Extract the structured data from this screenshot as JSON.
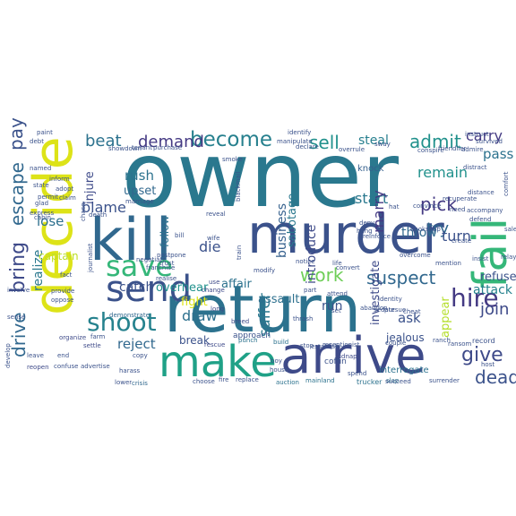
{
  "word_cloud": {
    "words": [
      {
        "text": "owner",
        "color": "#2a788e"
      },
      {
        "text": "decide",
        "color": "#dde318"
      },
      {
        "text": "kill",
        "color": "#31688e"
      },
      {
        "text": "murder",
        "color": "#3b528b"
      },
      {
        "text": "return",
        "color": "#2c728e"
      },
      {
        "text": "fail",
        "color": "#35b779"
      },
      {
        "text": "arrive",
        "color": "#3e4a89"
      },
      {
        "text": "make",
        "color": "#1fa187"
      },
      {
        "text": "send",
        "color": "#3b528b"
      },
      {
        "text": "save",
        "color": "#35b779"
      },
      {
        "text": "shoot",
        "color": "#26828e"
      },
      {
        "text": "work",
        "color": "#6ece58"
      },
      {
        "text": "become",
        "color": "#27808e"
      },
      {
        "text": "escape",
        "color": "#31688e"
      },
      {
        "text": "bring",
        "color": "#3e4a89"
      },
      {
        "text": "drive",
        "color": "#31688e"
      },
      {
        "text": "pay",
        "color": "#3b528b"
      },
      {
        "text": "beat",
        "color": "#2c728e"
      },
      {
        "text": "demand",
        "color": "#443983"
      },
      {
        "text": "sell",
        "color": "#21918c"
      },
      {
        "text": "steal",
        "color": "#277f8e"
      },
      {
        "text": "admit",
        "color": "#21918c"
      },
      {
        "text": "carry",
        "color": "#443a83"
      },
      {
        "text": "pass",
        "color": "#2c728e"
      },
      {
        "text": "blame",
        "color": "#3b528b"
      },
      {
        "text": "lose",
        "color": "#2d708e"
      },
      {
        "text": "realize",
        "color": "#2a788e"
      },
      {
        "text": "captain",
        "color": "#bddf26"
      },
      {
        "text": "injure",
        "color": "#3e4a89"
      },
      {
        "text": "rush",
        "color": "#2c728e"
      },
      {
        "text": "upset",
        "color": "#31688e"
      },
      {
        "text": "die",
        "color": "#3b528b"
      },
      {
        "text": "draw",
        "color": "#2d708e"
      },
      {
        "text": "reject",
        "color": "#31688e"
      },
      {
        "text": "catch",
        "color": "#3b528b"
      },
      {
        "text": "overhear",
        "color": "#21918c"
      },
      {
        "text": "affair",
        "color": "#2c728e"
      },
      {
        "text": "break",
        "color": "#3b528b"
      },
      {
        "text": "fight",
        "color": "#dde318"
      },
      {
        "text": "suffer",
        "color": "#2a788e"
      },
      {
        "text": "business",
        "color": "#35608d"
      },
      {
        "text": "sabotage",
        "color": "#2a788e"
      },
      {
        "text": "introduce",
        "color": "#3e4a89"
      },
      {
        "text": "start",
        "color": "#2a788e"
      },
      {
        "text": "marry",
        "color": "#443983"
      },
      {
        "text": "remain",
        "color": "#21918c"
      },
      {
        "text": "pick",
        "color": "#443a83"
      },
      {
        "text": "try",
        "color": "#31688e"
      },
      {
        "text": "turn",
        "color": "#3b528b"
      },
      {
        "text": "throw",
        "color": "#31688e"
      },
      {
        "text": "suspect",
        "color": "#31688e"
      },
      {
        "text": "hire",
        "color": "#443a83"
      },
      {
        "text": "join",
        "color": "#3e4a89"
      },
      {
        "text": "give",
        "color": "#3e4a89"
      },
      {
        "text": "dead",
        "color": "#3b528b"
      },
      {
        "text": "refuse",
        "color": "#3b528b"
      },
      {
        "text": "attack",
        "color": "#26828e"
      },
      {
        "text": "investigate",
        "color": "#3e4a89"
      },
      {
        "text": "ask",
        "color": "#3b528b"
      },
      {
        "text": "jealous",
        "color": "#3b528b"
      },
      {
        "text": "appear",
        "color": "#b5de2b"
      },
      {
        "text": "run",
        "color": "#3b528b"
      },
      {
        "text": "assault",
        "color": "#2d708e"
      },
      {
        "text": "follow",
        "color": "#2c728e"
      },
      {
        "text": "knock",
        "color": "#35608d"
      },
      {
        "text": "approach",
        "color": "#3b528b"
      },
      {
        "text": "interrogate",
        "color": "#2c728e"
      },
      {
        "text": "coffin",
        "color": "#3b528b"
      },
      {
        "text": "record",
        "color": "#3b528b"
      },
      {
        "text": "ransom",
        "color": "#3b528b"
      },
      {
        "text": "kidnap",
        "color": "#3e4a89"
      },
      {
        "text": "trucker",
        "color": "#2c728e"
      },
      {
        "text": "slap",
        "color": "#2c728e"
      },
      {
        "text": "auction",
        "color": "#2c728e"
      },
      {
        "text": "mainland",
        "color": "#2c728e"
      },
      {
        "text": "build",
        "color": "#2c728e"
      },
      {
        "text": "establish",
        "color": "#3b528b"
      },
      {
        "text": "punch",
        "color": "#2c728e"
      },
      {
        "text": "rescue",
        "color": "#3e4a89"
      },
      {
        "text": "breed",
        "color": "#3e4a89"
      },
      {
        "text": "long",
        "color": "#3e4a89"
      },
      {
        "text": "change",
        "color": "#3e4a89"
      },
      {
        "text": "use",
        "color": "#3e4a89"
      },
      {
        "text": "fire",
        "color": "#3b528b"
      },
      {
        "text": "choose",
        "color": "#3b528b"
      },
      {
        "text": "crisis",
        "color": "#31688e"
      },
      {
        "text": "lower",
        "color": "#3b528b"
      },
      {
        "text": "copy",
        "color": "#3b528b"
      },
      {
        "text": "settle",
        "color": "#3e4a89"
      },
      {
        "text": "organize",
        "color": "#3e4a89"
      },
      {
        "text": "demonstrate",
        "color": "#31688e"
      },
      {
        "text": "confuse",
        "color": "#3b528b"
      },
      {
        "text": "advertise",
        "color": "#3b528b"
      },
      {
        "text": "end",
        "color": "#3b528b"
      },
      {
        "text": "sense",
        "color": "#3b528b"
      },
      {
        "text": "leave",
        "color": "#3b528b"
      },
      {
        "text": "reopen",
        "color": "#3e4a89"
      },
      {
        "text": "develop",
        "color": "#3b528b"
      },
      {
        "text": "involve",
        "color": "#3b528b"
      },
      {
        "text": "provide",
        "color": "#3b528b"
      },
      {
        "text": "oppose",
        "color": "#3b528b"
      },
      {
        "text": "fact",
        "color": "#3b528b"
      },
      {
        "text": "adopt",
        "color": "#3b528b"
      },
      {
        "text": "claim",
        "color": "#3b528b"
      },
      {
        "text": "permit",
        "color": "#3b528b"
      },
      {
        "text": "inform",
        "color": "#3b528b"
      },
      {
        "text": "named",
        "color": "#3b528b"
      },
      {
        "text": "state",
        "color": "#3b528b"
      },
      {
        "text": "glad",
        "color": "#3b528b"
      },
      {
        "text": "cabin",
        "color": "#3b528b"
      },
      {
        "text": "express",
        "color": "#3b528b"
      },
      {
        "text": "paint",
        "color": "#3b528b"
      },
      {
        "text": "debt",
        "color": "#3b528b"
      },
      {
        "text": "identify",
        "color": "#3b528b"
      },
      {
        "text": "manipulate",
        "color": "#3b528b"
      },
      {
        "text": "showdown",
        "color": "#3b528b"
      },
      {
        "text": "tenant",
        "color": "#3b528b"
      },
      {
        "text": "purchase",
        "color": "#3b528b"
      },
      {
        "text": "declare",
        "color": "#3b528b"
      },
      {
        "text": "overrule",
        "color": "#3b528b"
      },
      {
        "text": "sway",
        "color": "#3b528b"
      },
      {
        "text": "friendlier",
        "color": "#3b528b"
      },
      {
        "text": "conspire",
        "color": "#3b528b"
      },
      {
        "text": "admire",
        "color": "#3b528b"
      },
      {
        "text": "survived",
        "color": "#3b528b"
      },
      {
        "text": "distract",
        "color": "#3b528b"
      },
      {
        "text": "distance",
        "color": "#3b528b"
      },
      {
        "text": "accompany",
        "color": "#3b528b"
      },
      {
        "text": "comfort",
        "color": "#3b528b"
      },
      {
        "text": "create",
        "color": "#3b528b"
      },
      {
        "text": "need",
        "color": "#3b528b"
      },
      {
        "text": "defend",
        "color": "#3b528b"
      },
      {
        "text": "insist",
        "color": "#3b528b"
      },
      {
        "text": "mention",
        "color": "#3b528b"
      },
      {
        "text": "overcome",
        "color": "#3b528b"
      },
      {
        "text": "reinforce",
        "color": "#3b528b"
      },
      {
        "text": "bookshop",
        "color": "#3b528b"
      },
      {
        "text": "convince",
        "color": "#3b528b"
      },
      {
        "text": "recuperate",
        "color": "#3b528b"
      },
      {
        "text": "succeed",
        "color": "#3b528b"
      },
      {
        "text": "life",
        "color": "#3b528b"
      },
      {
        "text": "train",
        "color": "#3b528b"
      },
      {
        "text": "modify",
        "color": "#3b528b"
      },
      {
        "text": "trust",
        "color": "#3b528b"
      },
      {
        "text": "franchise",
        "color": "#3b528b"
      },
      {
        "text": "postpone",
        "color": "#3b528b"
      },
      {
        "text": "negotiate",
        "color": "#3b528b"
      },
      {
        "text": "journalist",
        "color": "#3b528b"
      },
      {
        "text": "chase",
        "color": "#3b528b"
      },
      {
        "text": "death",
        "color": "#3b528b"
      },
      {
        "text": "marriage",
        "color": "#3b528b"
      },
      {
        "text": "hat",
        "color": "#3b528b"
      },
      {
        "text": "sedate",
        "color": "#3b528b"
      },
      {
        "text": "cheat",
        "color": "#3b528b"
      },
      {
        "text": "pursue",
        "color": "#3b528b"
      },
      {
        "text": "identity",
        "color": "#3b528b"
      },
      {
        "text": "receptionist",
        "color": "#3b528b"
      },
      {
        "text": "stop",
        "color": "#3b528b"
      },
      {
        "text": "couple",
        "color": "#3b528b"
      },
      {
        "text": "spend",
        "color": "#3b528b"
      },
      {
        "text": "notice",
        "color": "#3b528b"
      },
      {
        "text": "convert",
        "color": "#3b528b"
      },
      {
        "text": "thrash",
        "color": "#3b528b"
      },
      {
        "text": "attend",
        "color": "#3b528b"
      },
      {
        "text": "set",
        "color": "#3b528b"
      },
      {
        "text": "part",
        "color": "#3b528b"
      },
      {
        "text": "replace",
        "color": "#3b528b"
      },
      {
        "text": "harass",
        "color": "#3b528b"
      },
      {
        "text": "farm",
        "color": "#3b528b"
      },
      {
        "text": "ranch",
        "color": "#3b528b"
      },
      {
        "text": "host",
        "color": "#3b528b"
      },
      {
        "text": "surrender",
        "color": "#3b528b"
      },
      {
        "text": "sale",
        "color": "#3b528b"
      },
      {
        "text": "relay",
        "color": "#3b528b"
      },
      {
        "text": "blackmail",
        "color": "#3b528b"
      },
      {
        "text": "deny",
        "color": "#3b528b"
      },
      {
        "text": "hang",
        "color": "#3b528b"
      },
      {
        "text": "smoke",
        "color": "#3b528b"
      },
      {
        "text": "wife",
        "color": "#3b528b"
      },
      {
        "text": "reveal",
        "color": "#3b528b"
      },
      {
        "text": "bill",
        "color": "#3b528b"
      },
      {
        "text": "boy",
        "color": "#3b528b"
      },
      {
        "text": "house",
        "color": "#3b528b"
      },
      {
        "text": "abandon",
        "color": "#3b528b"
      },
      {
        "text": "instruct",
        "color": "#3b528b"
      },
      {
        "text": "realise",
        "color": "#3b528b"
      }
    ]
  }
}
